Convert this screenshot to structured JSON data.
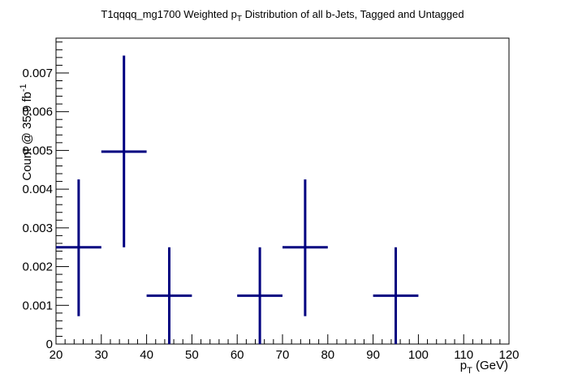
{
  "chart_data": {
    "type": "scatter",
    "title": {
      "prefix": "T1qqqq_mg1700 Weighted p",
      "sub": "T",
      "suffix": " Distribution of all b-Jets, Tagged and Untagged"
    },
    "xlabel": {
      "main": "p",
      "sub": "T",
      "rest": " (GeV)"
    },
    "ylabel": {
      "main": "Count @ 35.9 fb",
      "sup": "-1"
    },
    "xlim": [
      20,
      120
    ],
    "ylim": [
      0,
      0.0079
    ],
    "x_ticks": [
      "20",
      "30",
      "40",
      "50",
      "60",
      "70",
      "80",
      "90",
      "100",
      "110",
      "120"
    ],
    "y_ticks": [
      "0",
      "0.001",
      "0.002",
      "0.003",
      "0.004",
      "0.005",
      "0.006",
      "0.007"
    ],
    "grid": false,
    "color": "#000080",
    "points": [
      {
        "x": 25,
        "y": 0.0025,
        "xlow": 20,
        "xhigh": 30,
        "ylow": 0.00072,
        "yhigh": 0.00425
      },
      {
        "x": 35,
        "y": 0.00497,
        "xlow": 30,
        "xhigh": 40,
        "ylow": 0.0025,
        "yhigh": 0.00745
      },
      {
        "x": 45,
        "y": 0.00125,
        "xlow": 40,
        "xhigh": 50,
        "ylow": 0,
        "yhigh": 0.0025
      },
      {
        "x": 65,
        "y": 0.00125,
        "xlow": 60,
        "xhigh": 70,
        "ylow": 0,
        "yhigh": 0.0025
      },
      {
        "x": 75,
        "y": 0.0025,
        "xlow": 70,
        "xhigh": 80,
        "ylow": 0.00072,
        "yhigh": 0.00425
      },
      {
        "x": 95,
        "y": 0.00125,
        "xlow": 90,
        "xhigh": 100,
        "ylow": 0,
        "yhigh": 0.0025
      }
    ]
  }
}
